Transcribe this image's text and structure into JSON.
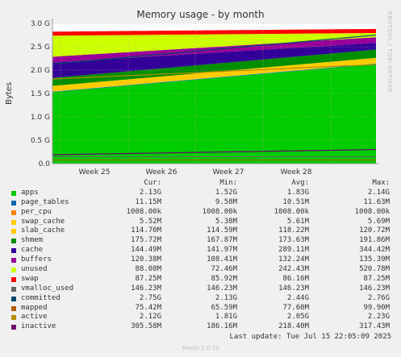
{
  "chart_data": {
    "type": "area",
    "title": "Memory usage - by month",
    "ylabel": "Bytes",
    "xlabel": "",
    "x_tick_labels": [
      "Week 25",
      "Week 26",
      "Week 27",
      "Week 28"
    ],
    "y_tick_labels": [
      "0.0",
      "0.5 G",
      "1.0 G",
      "1.5 G",
      "2.0 G",
      "2.5 G",
      "3.0 G"
    ],
    "ylim": [
      0,
      3.0
    ],
    "grid": true,
    "stack_order": [
      "apps",
      "page_tables",
      "per_cpu",
      "swap_cache",
      "slab_cache",
      "shmem",
      "cache",
      "buffers",
      "unused",
      "swap"
    ],
    "series": [
      {
        "name": "apps",
        "color": "#00cc00",
        "cur": "2.13G",
        "min": "1.52G",
        "avg": "1.83G",
        "max": "2.14G",
        "start_g": 1.53,
        "end_g": 2.13
      },
      {
        "name": "page_tables",
        "color": "#0066b3",
        "cur": "11.15M",
        "min": "9.58M",
        "avg": "10.51M",
        "max": "11.63M",
        "start_g": 0.01,
        "end_g": 0.011
      },
      {
        "name": "per_cpu",
        "color": "#ff8000",
        "cur": "1008.00k",
        "min": "1008.00k",
        "avg": "1008.00k",
        "max": "1008.00k",
        "start_g": 0.001,
        "end_g": 0.001
      },
      {
        "name": "swap_cache",
        "color": "#ffcc00",
        "cur": "5.52M",
        "min": "5.38M",
        "avg": "5.61M",
        "max": "5.69M",
        "start_g": 0.006,
        "end_g": 0.006
      },
      {
        "name": "slab_cache",
        "color": "#ffcc00",
        "cur": "114.70M",
        "min": "114.59M",
        "avg": "118.22M",
        "max": "120.72M",
        "start_g": 0.115,
        "end_g": 0.115
      },
      {
        "name": "shmem",
        "color": "#008f00",
        "cur": "175.72M",
        "min": "167.87M",
        "avg": "173.63M",
        "max": "191.86M",
        "start_g": 0.17,
        "end_g": 0.176
      },
      {
        "name": "cache",
        "color": "#330099",
        "cur": "144.49M",
        "min": "141.97M",
        "avg": "289.11M",
        "max": "344.42M",
        "start_g": 0.33,
        "end_g": 0.145
      },
      {
        "name": "buffers",
        "color": "#990099",
        "cur": "120.38M",
        "min": "108.41M",
        "avg": "132.24M",
        "max": "135.39M",
        "start_g": 0.125,
        "end_g": 0.12
      },
      {
        "name": "unused",
        "color": "#ccff00",
        "cur": "88.08M",
        "min": "72.46M",
        "avg": "242.43M",
        "max": "520.78M",
        "start_g": 0.45,
        "end_g": 0.09
      },
      {
        "name": "swap",
        "color": "#ff0000",
        "cur": "87.25M",
        "min": "85.92M",
        "avg": "86.16M",
        "max": "87.25M",
        "start_g": 0.086,
        "end_g": 0.087
      },
      {
        "name": "vmalloc_used",
        "color": "#666666",
        "cur": "146.23M",
        "min": "146.23M",
        "avg": "146.23M",
        "max": "146.23M"
      },
      {
        "name": "committed",
        "color": "#00496e",
        "cur": "2.75G",
        "min": "2.13G",
        "avg": "2.44G",
        "max": "2.76G",
        "start_g": 2.13,
        "end_g": 2.75
      },
      {
        "name": "mapped",
        "color": "#b35a00",
        "cur": "75.42M",
        "min": "65.59M",
        "avg": "77.60M",
        "max": "99.90M"
      },
      {
        "name": "active",
        "color": "#b38f00",
        "cur": "2.12G",
        "min": "1.81G",
        "avg": "2.05G",
        "max": "2.23G",
        "start_g": 1.81,
        "end_g": 2.12
      },
      {
        "name": "inactive",
        "color": "#6b006b",
        "cur": "305.58M",
        "min": "186.16M",
        "avg": "218.40M",
        "max": "317.43M",
        "start_g": 0.19,
        "end_g": 0.3
      }
    ]
  },
  "legend": {
    "headers": {
      "cur": "Cur:",
      "min": "Min:",
      "avg": "Avg:",
      "max": "Max:"
    }
  },
  "side_label": "RRDTOOL / TOBI OETIKER",
  "last_update": "Last update: Tue Jul 15 22:05:09 2025",
  "footer": "Munin 2.0.73"
}
